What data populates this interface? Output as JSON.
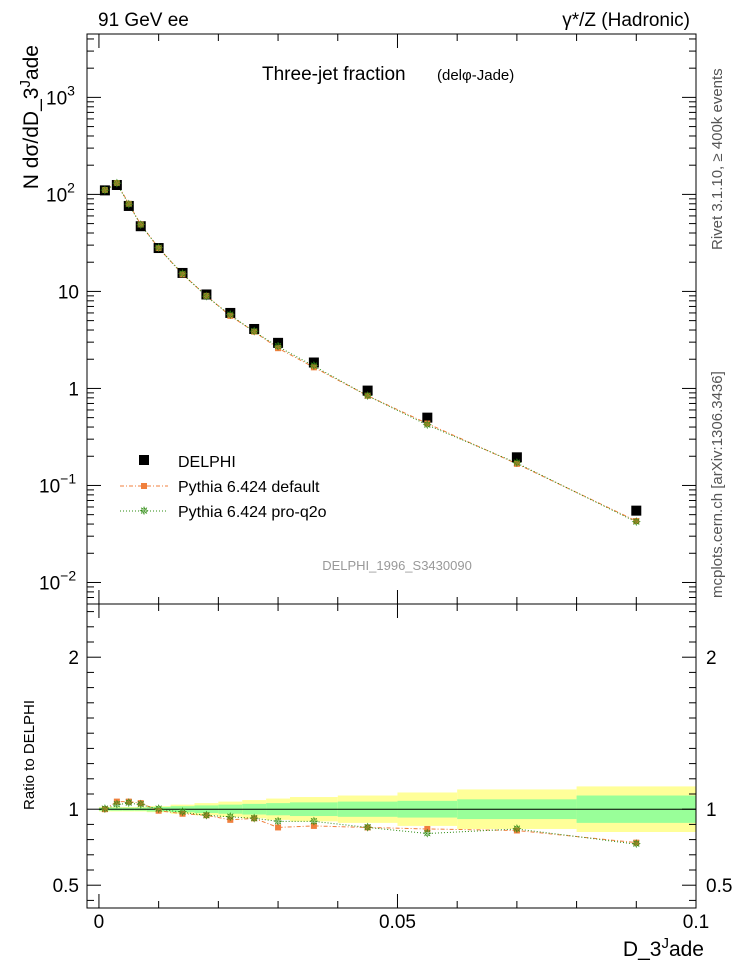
{
  "header": {
    "left": "91 GeV ee",
    "right": "γ*/Z (Hadronic)"
  },
  "side_labels": {
    "rivet": "Rivet 3.1.10, ≥ 400k events",
    "mcplots": "mcplots.cern.ch [arXiv:1306.3436]"
  },
  "plot_title": "Three-jet fraction",
  "plot_subtitle": "(delφ-Jade)",
  "analysis_id": "DELPHI_1996_S3430090",
  "ylabel_top": "N dσ/dD_3^Jade",
  "ylabel_bottom": "Ratio to DELPHI",
  "xlabel": "D_3^Jade",
  "legend": {
    "data": "DELPHI",
    "mc1": "Pythia 6.424 default",
    "mc2": "Pythia 6.424 pro-q2o"
  },
  "colors": {
    "data": "#000000",
    "mc1": "#f07f3c",
    "mc2": "#2e8b12",
    "band_inner": "#99ff99",
    "band_outer": "#ffff99"
  },
  "chart_data": {
    "type": "scatter",
    "x_range": [
      -0.002,
      0.1
    ],
    "y_log": true,
    "y_range_top": [
      0.006,
      4500
    ],
    "y_range_ratio": [
      0.35,
      2.35
    ],
    "x_ticks": [
      {
        "v": 0,
        "label": "0"
      },
      {
        "v": 0.05,
        "label": "0.05"
      },
      {
        "v": 0.1,
        "label": "0.1"
      }
    ],
    "y_ticks_top": [
      {
        "v": 0.01,
        "base": "10",
        "exp": "−2"
      },
      {
        "v": 0.1,
        "base": "10",
        "exp": "−1"
      },
      {
        "v": 1,
        "base": "1",
        "exp": ""
      },
      {
        "v": 10,
        "base": "10",
        "exp": ""
      },
      {
        "v": 100,
        "base": "10",
        "exp": "2"
      },
      {
        "v": 1000,
        "base": "10",
        "exp": "3"
      }
    ],
    "y_ticks_ratio": [
      {
        "v": 0.5,
        "label": "0.5"
      },
      {
        "v": 1,
        "label": "1"
      },
      {
        "v": 2,
        "label": "2"
      }
    ],
    "bins": [
      {
        "lo": 0.0,
        "hi": 0.002
      },
      {
        "lo": 0.002,
        "hi": 0.004
      },
      {
        "lo": 0.004,
        "hi": 0.006
      },
      {
        "lo": 0.006,
        "hi": 0.008
      },
      {
        "lo": 0.008,
        "hi": 0.012
      },
      {
        "lo": 0.012,
        "hi": 0.016
      },
      {
        "lo": 0.016,
        "hi": 0.02
      },
      {
        "lo": 0.02,
        "hi": 0.024
      },
      {
        "lo": 0.024,
        "hi": 0.028
      },
      {
        "lo": 0.028,
        "hi": 0.032
      },
      {
        "lo": 0.032,
        "hi": 0.04
      },
      {
        "lo": 0.04,
        "hi": 0.05
      },
      {
        "lo": 0.05,
        "hi": 0.06
      },
      {
        "lo": 0.06,
        "hi": 0.08
      },
      {
        "lo": 0.08,
        "hi": 0.1
      }
    ],
    "x": [
      0.001,
      0.003,
      0.005,
      0.007,
      0.01,
      0.014,
      0.018,
      0.022,
      0.026,
      0.03,
      0.036,
      0.045,
      0.055,
      0.07,
      0.09
    ],
    "series": [
      {
        "name": "DELPHI",
        "values": [
          110,
          125,
          76,
          47,
          28,
          15.5,
          9.3,
          6.0,
          4.1,
          2.95,
          1.85,
          0.95,
          0.5,
          0.195,
          0.055
        ]
      },
      {
        "name": "Pythia 6.424 default",
        "values": [
          111,
          131,
          80,
          49,
          28,
          15.0,
          9.0,
          5.6,
          3.85,
          2.6,
          1.65,
          0.84,
          0.435,
          0.167,
          0.043
        ]
      },
      {
        "name": "Pythia 6.424 pro-q2o",
        "values": [
          110,
          129,
          79,
          48.5,
          28,
          15.2,
          8.9,
          5.7,
          3.85,
          2.7,
          1.7,
          0.84,
          0.42,
          0.17,
          0.042
        ]
      }
    ],
    "ratio": {
      "mc1": [
        1.0,
        1.05,
        1.05,
        1.04,
        0.99,
        0.97,
        0.96,
        0.93,
        0.94,
        0.88,
        0.89,
        0.88,
        0.87,
        0.86,
        0.78
      ],
      "mc2": [
        1.0,
        1.03,
        1.04,
        1.03,
        1.0,
        0.98,
        0.96,
        0.95,
        0.94,
        0.92,
        0.92,
        0.88,
        0.84,
        0.87,
        0.77
      ],
      "band_inner": [
        0.01,
        0.01,
        0.01,
        0.01,
        0.015,
        0.02,
        0.025,
        0.03,
        0.035,
        0.04,
        0.045,
        0.05,
        0.055,
        0.065,
        0.09
      ],
      "band_outer": [
        0.015,
        0.015,
        0.015,
        0.015,
        0.02,
        0.03,
        0.04,
        0.05,
        0.06,
        0.07,
        0.08,
        0.09,
        0.11,
        0.13,
        0.15
      ]
    }
  }
}
